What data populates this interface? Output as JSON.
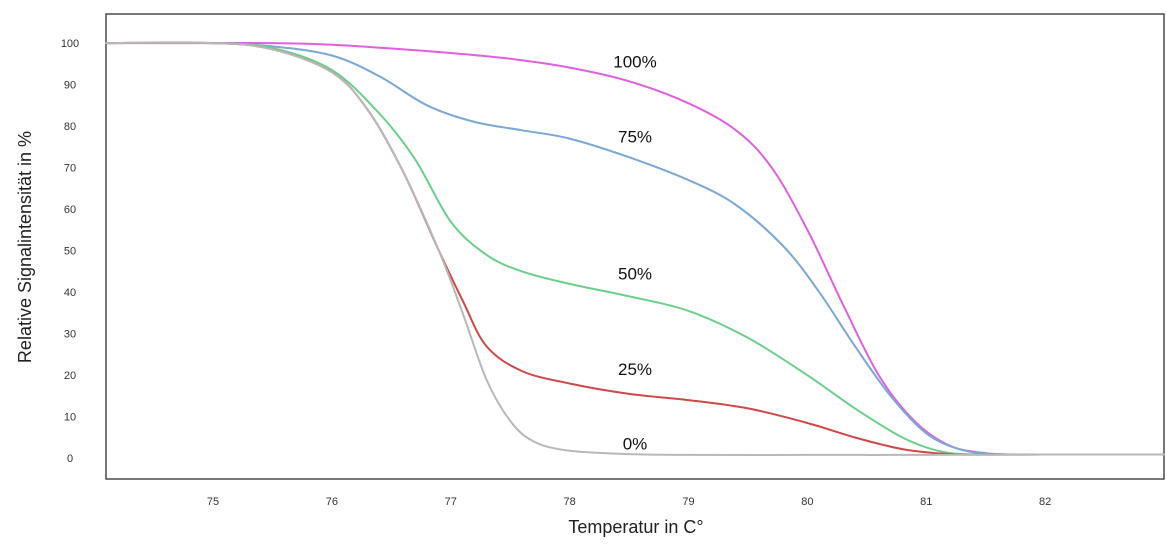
{
  "chart_data": {
    "type": "line",
    "title": "",
    "xlabel": "Temperatur in C°",
    "ylabel": "Relative Signalintensität in %",
    "xlim": [
      74.1,
      83.0
    ],
    "ylim": [
      -5,
      107
    ],
    "xticks": [
      75,
      76,
      77,
      78,
      79,
      80,
      81,
      82
    ],
    "yticks": [
      0,
      10,
      20,
      30,
      40,
      50,
      60,
      70,
      80,
      90,
      100
    ],
    "grid": false,
    "legend": "none (labels placed next to curves)",
    "series": [
      {
        "name": "100%",
        "color": "#e060e0",
        "points": [
          [
            74.1,
            100
          ],
          [
            75.0,
            100
          ],
          [
            75.5,
            100
          ],
          [
            76.0,
            99.6
          ],
          [
            76.5,
            98.7
          ],
          [
            77.0,
            97.6
          ],
          [
            77.5,
            96.2
          ],
          [
            78.0,
            94.1
          ],
          [
            78.5,
            90.8
          ],
          [
            79.0,
            85.5
          ],
          [
            79.4,
            79.0
          ],
          [
            79.7,
            70.0
          ],
          [
            80.0,
            55.0
          ],
          [
            80.3,
            37.0
          ],
          [
            80.6,
            20.0
          ],
          [
            80.9,
            9.0
          ],
          [
            81.2,
            3.0
          ],
          [
            81.5,
            1.2
          ],
          [
            81.7,
            0.9
          ],
          [
            82.0,
            0.9
          ],
          [
            83.0,
            0.9
          ]
        ]
      },
      {
        "name": "75%",
        "color": "#7aa8d8",
        "points": [
          [
            74.1,
            100
          ],
          [
            75.0,
            100
          ],
          [
            75.5,
            99.2
          ],
          [
            76.0,
            97.0
          ],
          [
            76.4,
            92.0
          ],
          [
            76.8,
            85.0
          ],
          [
            77.2,
            81.0
          ],
          [
            77.6,
            79.0
          ],
          [
            78.0,
            77.0
          ],
          [
            78.5,
            72.5
          ],
          [
            79.0,
            67.0
          ],
          [
            79.4,
            61.0
          ],
          [
            79.8,
            51.0
          ],
          [
            80.1,
            40.0
          ],
          [
            80.4,
            27.0
          ],
          [
            80.7,
            15.0
          ],
          [
            81.0,
            6.0
          ],
          [
            81.3,
            2.0
          ],
          [
            81.6,
            1.0
          ],
          [
            82.0,
            0.9
          ],
          [
            83.0,
            0.9
          ]
        ]
      },
      {
        "name": "50%",
        "color": "#6bd08a",
        "points": [
          [
            74.1,
            100
          ],
          [
            75.0,
            100
          ],
          [
            75.5,
            98.8
          ],
          [
            76.0,
            93.5
          ],
          [
            76.4,
            83.0
          ],
          [
            76.7,
            72.0
          ],
          [
            77.0,
            57.0
          ],
          [
            77.3,
            49.0
          ],
          [
            77.6,
            45.0
          ],
          [
            78.0,
            42.0
          ],
          [
            78.5,
            39.0
          ],
          [
            79.0,
            35.5
          ],
          [
            79.5,
            29.0
          ],
          [
            80.0,
            20.0
          ],
          [
            80.4,
            12.0
          ],
          [
            80.8,
            5.0
          ],
          [
            81.1,
            1.8
          ],
          [
            81.4,
            0.9
          ],
          [
            82.0,
            0.9
          ],
          [
            83.0,
            0.9
          ]
        ]
      },
      {
        "name": "25%",
        "color": "#d04848",
        "points": [
          [
            74.1,
            100
          ],
          [
            75.0,
            100
          ],
          [
            75.5,
            98.5
          ],
          [
            76.0,
            93.0
          ],
          [
            76.3,
            84.0
          ],
          [
            76.6,
            69.0
          ],
          [
            76.9,
            50.0
          ],
          [
            77.1,
            38.0
          ],
          [
            77.3,
            27.0
          ],
          [
            77.6,
            21.0
          ],
          [
            78.0,
            18.0
          ],
          [
            78.5,
            15.5
          ],
          [
            79.0,
            14.0
          ],
          [
            79.5,
            12.0
          ],
          [
            80.0,
            8.5
          ],
          [
            80.4,
            5.0
          ],
          [
            80.8,
            2.2
          ],
          [
            81.2,
            1.0
          ],
          [
            81.6,
            0.9
          ],
          [
            82.0,
            0.9
          ],
          [
            83.0,
            0.9
          ]
        ]
      },
      {
        "name": "0%",
        "color": "#b8b8b8",
        "points": [
          [
            74.1,
            100
          ],
          [
            75.0,
            100
          ],
          [
            75.5,
            98.5
          ],
          [
            76.0,
            93.0
          ],
          [
            76.3,
            84.0
          ],
          [
            76.6,
            69.0
          ],
          [
            76.9,
            50.0
          ],
          [
            77.1,
            35.0
          ],
          [
            77.3,
            19.0
          ],
          [
            77.5,
            9.0
          ],
          [
            77.7,
            4.0
          ],
          [
            78.0,
            1.8
          ],
          [
            78.5,
            1.0
          ],
          [
            79.0,
            0.8
          ],
          [
            80.0,
            0.8
          ],
          [
            81.0,
            0.8
          ],
          [
            82.0,
            0.9
          ],
          [
            83.0,
            0.9
          ]
        ]
      }
    ],
    "annotations": [
      {
        "text": "100%",
        "x": 78.55,
        "y": 95.5
      },
      {
        "text": "75%",
        "x": 78.55,
        "y": 77.5
      },
      {
        "text": "50%",
        "x": 78.55,
        "y": 44.5
      },
      {
        "text": "25%",
        "x": 78.55,
        "y": 21.5
      },
      {
        "text": "0%",
        "x": 78.55,
        "y": 3.5
      }
    ]
  }
}
